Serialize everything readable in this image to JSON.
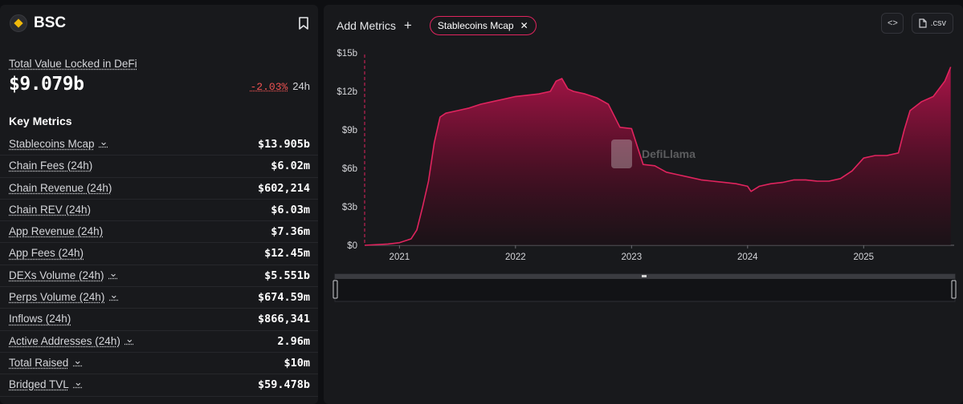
{
  "sidebar": {
    "chain_name": "BSC",
    "tvl_label": "Total Value Locked in DeFi",
    "tvl_value": "$9.079b",
    "tvl_change": "-2.03%",
    "tvl_period": "24h",
    "key_metrics_title": "Key Metrics",
    "metrics": [
      {
        "label": "Stablecoins Mcap",
        "value": "$13.905b",
        "dropdown": true
      },
      {
        "label": "Chain Fees (24h)",
        "value": "$6.02m",
        "dropdown": false
      },
      {
        "label": "Chain Revenue (24h)",
        "value": "$602,214",
        "dropdown": false
      },
      {
        "label": "Chain REV (24h)",
        "value": "$6.03m",
        "dropdown": false
      },
      {
        "label": "App Revenue (24h)",
        "value": "$7.36m",
        "dropdown": false
      },
      {
        "label": "App Fees (24h)",
        "value": "$12.45m",
        "dropdown": false
      },
      {
        "label": "DEXs Volume (24h)",
        "value": "$5.551b",
        "dropdown": true
      },
      {
        "label": "Perps Volume (24h)",
        "value": "$674.59m",
        "dropdown": true
      },
      {
        "label": "Inflows (24h)",
        "value": "$866,341",
        "dropdown": false
      },
      {
        "label": "Active Addresses (24h)",
        "value": "2.96m",
        "dropdown": true
      },
      {
        "label": "Total Raised",
        "value": "$10m",
        "dropdown": true
      },
      {
        "label": "Bridged TVL",
        "value": "$59.478b",
        "dropdown": true
      }
    ]
  },
  "toolbar": {
    "add_metrics_label": "Add Metrics",
    "active_metric_chip": "Stablecoins Mcap",
    "csv_label": ".csv"
  },
  "colors": {
    "accent": "#e0245e",
    "negative": "#f05252",
    "tvl_icon": "#f0b90b"
  },
  "icons": {
    "logo": "bsc-logo-icon",
    "bookmark": "bookmark-icon",
    "plus": "plus-icon",
    "close": "close-icon",
    "embed": "code-icon",
    "csv": "file-icon"
  },
  "chart_data": {
    "type": "area",
    "y_tick_labels": [
      "$0",
      "$3b",
      "$6b",
      "$9b",
      "$12b",
      "$15b"
    ],
    "x_tick_labels": [
      "2021",
      "2022",
      "2023",
      "2024",
      "2025"
    ],
    "ylim": [
      0,
      15
    ],
    "y_unit": "billion USD",
    "series": [
      {
        "name": "Stablecoins Mcap",
        "x": [
          2020.7,
          2020.9,
          2021.0,
          2021.1,
          2021.15,
          2021.2,
          2021.25,
          2021.3,
          2021.35,
          2021.4,
          2021.5,
          2021.6,
          2021.7,
          2021.8,
          2021.9,
          2022.0,
          2022.1,
          2022.2,
          2022.3,
          2022.35,
          2022.4,
          2022.45,
          2022.5,
          2022.6,
          2022.7,
          2022.8,
          2022.9,
          2023.0,
          2023.1,
          2023.2,
          2023.3,
          2023.4,
          2023.5,
          2023.6,
          2023.7,
          2023.8,
          2023.9,
          2024.0,
          2024.03,
          2024.1,
          2024.2,
          2024.3,
          2024.4,
          2024.5,
          2024.6,
          2024.7,
          2024.8,
          2024.9,
          2025.0,
          2025.1,
          2025.2,
          2025.3,
          2025.35,
          2025.4,
          2025.5,
          2025.6,
          2025.7,
          2025.75
        ],
        "values": [
          0.0,
          0.1,
          0.2,
          0.5,
          1.2,
          3.0,
          5.0,
          8.0,
          10.0,
          10.3,
          10.5,
          10.7,
          11.0,
          11.2,
          11.4,
          11.6,
          11.7,
          11.8,
          12.0,
          12.8,
          13.0,
          12.2,
          12.0,
          11.8,
          11.5,
          11.0,
          9.2,
          9.1,
          6.3,
          6.2,
          5.7,
          5.5,
          5.3,
          5.1,
          5.0,
          4.9,
          4.8,
          4.6,
          4.2,
          4.6,
          4.8,
          4.9,
          5.1,
          5.1,
          5.0,
          5.0,
          5.2,
          5.8,
          6.8,
          7.0,
          7.0,
          7.2,
          9.0,
          10.5,
          11.2,
          11.6,
          12.8,
          13.905
        ]
      }
    ],
    "watermark": "DefiLlama",
    "legend": "none",
    "grid": false
  }
}
